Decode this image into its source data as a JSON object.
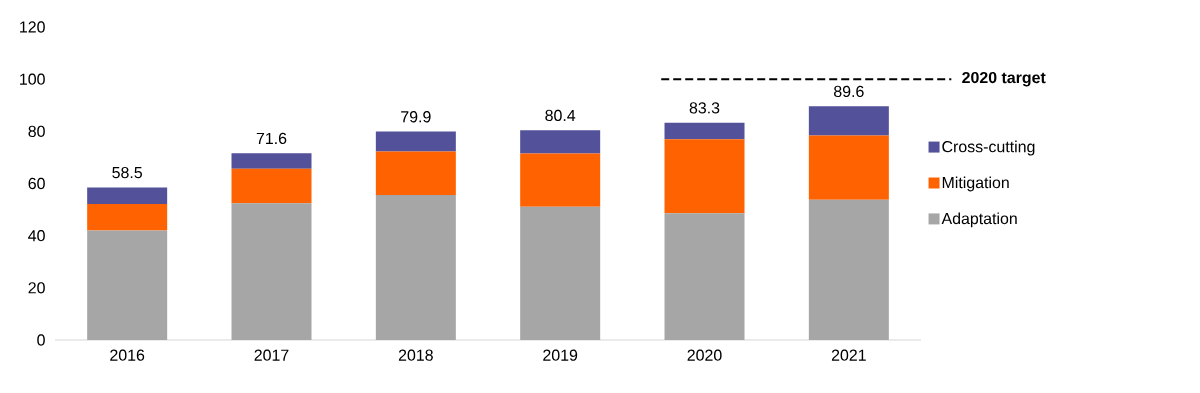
{
  "chart_data": {
    "type": "bar",
    "stacked": true,
    "categories": [
      "2016",
      "2017",
      "2018",
      "2019",
      "2020",
      "2021"
    ],
    "series": [
      {
        "name": "Adaptation",
        "color": "#a6a6a6",
        "values": [
          42.0,
          52.4,
          55.6,
          51.1,
          48.6,
          53.8
        ]
      },
      {
        "name": "Mitigation",
        "color": "#ff6200",
        "values": [
          10.1,
          13.3,
          16.7,
          20.4,
          28.4,
          24.6
        ]
      },
      {
        "name": "Cross-cutting",
        "color": "#525199",
        "values": [
          6.4,
          5.9,
          7.6,
          8.9,
          6.3,
          11.2
        ]
      }
    ],
    "totals": [
      "58.5",
      "71.6",
      "79.9",
      "80.4",
      "83.3",
      "89.6"
    ],
    "ylim": [
      0,
      120
    ],
    "yticks": [
      0,
      20,
      40,
      60,
      80,
      100,
      120
    ],
    "ref_lines": [
      {
        "axis": "y",
        "value": 100,
        "label": "2020 target",
        "color": "#000000",
        "line_style": "dashed"
      }
    ],
    "legend": "right"
  }
}
